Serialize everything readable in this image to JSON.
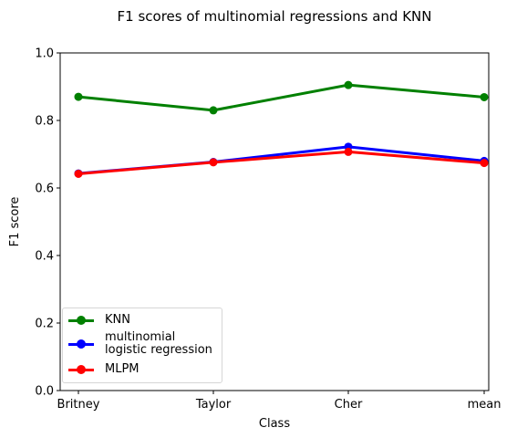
{
  "chart_data": {
    "type": "line",
    "title": "F1 scores of multinomial regressions and KNN",
    "xlabel": "Class",
    "ylabel": "F1 score",
    "categories": [
      "Britney",
      "Taylor",
      "Cher",
      "mean"
    ],
    "ylim": [
      0.0,
      1.0
    ],
    "yticks": [
      "0.0",
      "0.2",
      "0.4",
      "0.6",
      "0.8",
      "1.0"
    ],
    "grid": false,
    "legend_position": "bottom-left",
    "series": [
      {
        "name": "KNN",
        "color": "#008000",
        "values": [
          0.87,
          0.83,
          0.905,
          0.869
        ]
      },
      {
        "name": "multinomial\nlogistic regression",
        "color": "#0000ff",
        "values": [
          0.643,
          0.677,
          0.722,
          0.68
        ]
      },
      {
        "name": "MLPM",
        "color": "#ff0000",
        "values": [
          0.642,
          0.676,
          0.707,
          0.674
        ]
      }
    ]
  }
}
